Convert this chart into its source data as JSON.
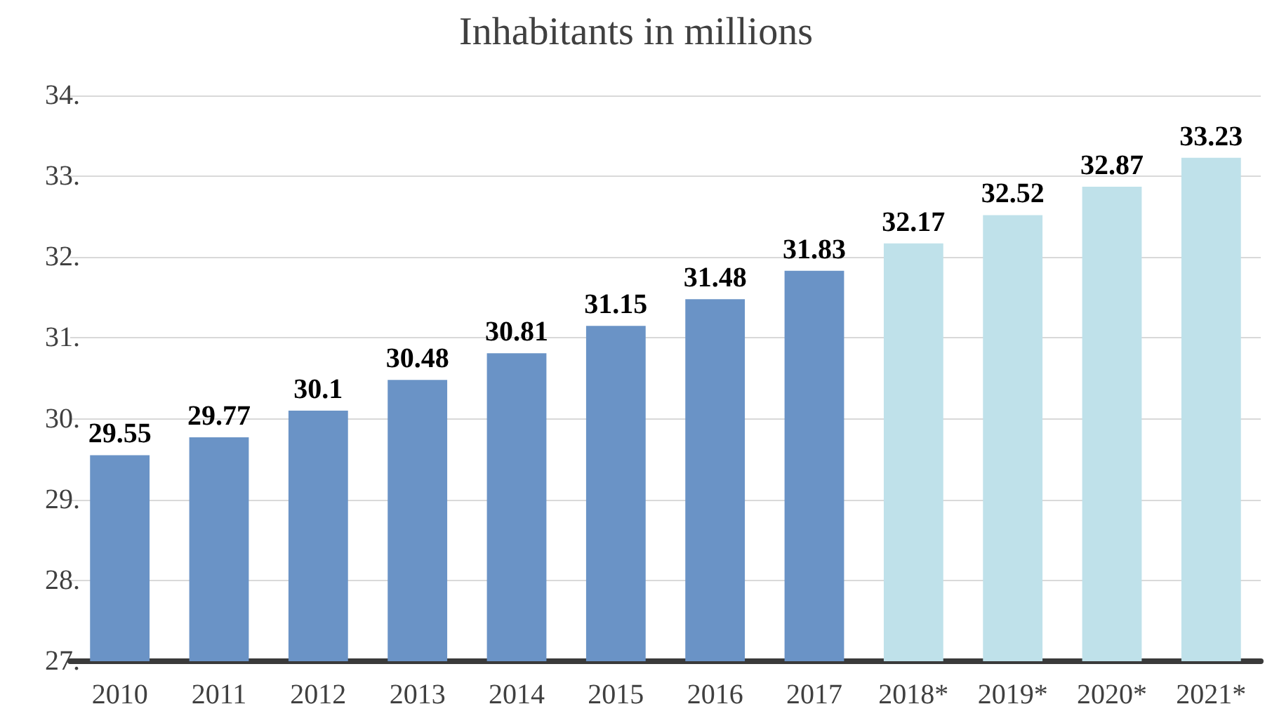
{
  "chart_data": {
    "type": "bar",
    "title": "Inhabitants in millions",
    "categories": [
      "2010",
      "2011",
      "2012",
      "2013",
      "2014",
      "2015",
      "2016",
      "2017",
      "2018*",
      "2019*",
      "2020*",
      "2021*"
    ],
    "values": [
      29.55,
      29.77,
      30.1,
      30.48,
      30.81,
      31.15,
      31.48,
      31.83,
      32.17,
      32.52,
      32.87,
      33.23
    ],
    "colors": [
      "#6a93c6",
      "#6a93c6",
      "#6a93c6",
      "#6a93c6",
      "#6a93c6",
      "#6a93c6",
      "#6a93c6",
      "#6a93c6",
      "#bfe1ea",
      "#bfe1ea",
      "#bfe1ea",
      "#bfe1ea"
    ],
    "ylim": [
      27,
      34
    ],
    "yticks": [
      {
        "value": 27,
        "label": "27."
      },
      {
        "value": 28,
        "label": "28."
      },
      {
        "value": 29,
        "label": "29."
      },
      {
        "value": 30,
        "label": "30."
      },
      {
        "value": 31,
        "label": "31."
      },
      {
        "value": 32,
        "label": "32."
      },
      {
        "value": 33,
        "label": "33."
      },
      {
        "value": 34,
        "label": "34."
      }
    ],
    "grid": "y",
    "data_labels": true
  }
}
